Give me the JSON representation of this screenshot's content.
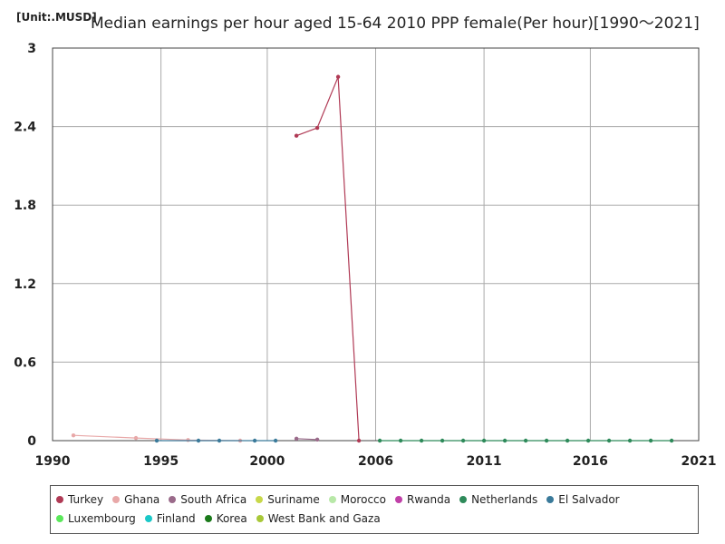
{
  "unit_label": "[Unit:.MUSD]",
  "chart_data": {
    "type": "line",
    "title": "Median earnings per hour aged 15-64 2010 PPP female(Per hour)[1990～2021]",
    "xlabel": "",
    "ylabel": "",
    "xlim": [
      1990,
      2021
    ],
    "ylim": [
      0,
      3
    ],
    "x_ticks": [
      "1990",
      "1995",
      "2000",
      "2006",
      "2011",
      "2016",
      "2021"
    ],
    "x_tick_values": [
      1990,
      1995.2,
      2000.3,
      2005.5,
      2010.7,
      2015.8,
      2021
    ],
    "y_ticks": [
      "0",
      "0.6",
      "1.2",
      "1.8",
      "2.4",
      "3"
    ],
    "y_tick_values": [
      0,
      0.6,
      1.2,
      1.8,
      2.4,
      3
    ],
    "grid": true,
    "legend_position": "bottom",
    "series": [
      {
        "name": "Turkey",
        "color": "#b03a55",
        "points": [
          [
            2001.7,
            2.33
          ],
          [
            2002.7,
            2.39
          ],
          [
            2003.7,
            2.78
          ],
          [
            2004.7,
            0.0
          ]
        ]
      },
      {
        "name": "Ghana",
        "color": "#e8a8a8",
        "points": [
          [
            1991,
            0.04
          ],
          [
            1994,
            0.02
          ],
          [
            1996.5,
            0.005
          ],
          [
            1999,
            0.0
          ]
        ]
      },
      {
        "name": "South Africa",
        "color": "#9a6a8a",
        "points": [
          [
            2001.7,
            0.015
          ],
          [
            2002.7,
            0.008
          ]
        ]
      },
      {
        "name": "Suriname",
        "color": "#c8d84a",
        "points": []
      },
      {
        "name": "Morocco",
        "color": "#b8e8a8",
        "points": []
      },
      {
        "name": "Rwanda",
        "color": "#c040a8",
        "points": []
      },
      {
        "name": "Netherlands",
        "color": "#2e8a5a",
        "points": [
          [
            2005.7,
            0.0
          ],
          [
            2006.7,
            0.0
          ],
          [
            2007.7,
            0.0
          ],
          [
            2008.7,
            0.0
          ],
          [
            2009.7,
            0.0
          ],
          [
            2010.7,
            0.0
          ],
          [
            2011.7,
            0.0
          ],
          [
            2012.7,
            0.0
          ],
          [
            2013.7,
            0.0
          ],
          [
            2014.7,
            0.0
          ],
          [
            2015.7,
            0.0
          ],
          [
            2016.7,
            0.0
          ],
          [
            2017.7,
            0.0
          ],
          [
            2018.7,
            0.0
          ],
          [
            2019.7,
            0.0
          ]
        ]
      },
      {
        "name": "El Salvador",
        "color": "#3a7a9a",
        "points": [
          [
            1995,
            0.0
          ],
          [
            1997,
            0.0
          ],
          [
            1998,
            0.0
          ],
          [
            1999.7,
            0.0
          ],
          [
            2000.7,
            0.0
          ]
        ]
      },
      {
        "name": "Luxembourg",
        "color": "#5ae85a",
        "points": []
      },
      {
        "name": "Finland",
        "color": "#1ac8c8",
        "points": []
      },
      {
        "name": "Korea",
        "color": "#1a7a1a",
        "points": []
      },
      {
        "name": "West Bank and Gaza",
        "color": "#a8c838",
        "points": []
      }
    ]
  }
}
